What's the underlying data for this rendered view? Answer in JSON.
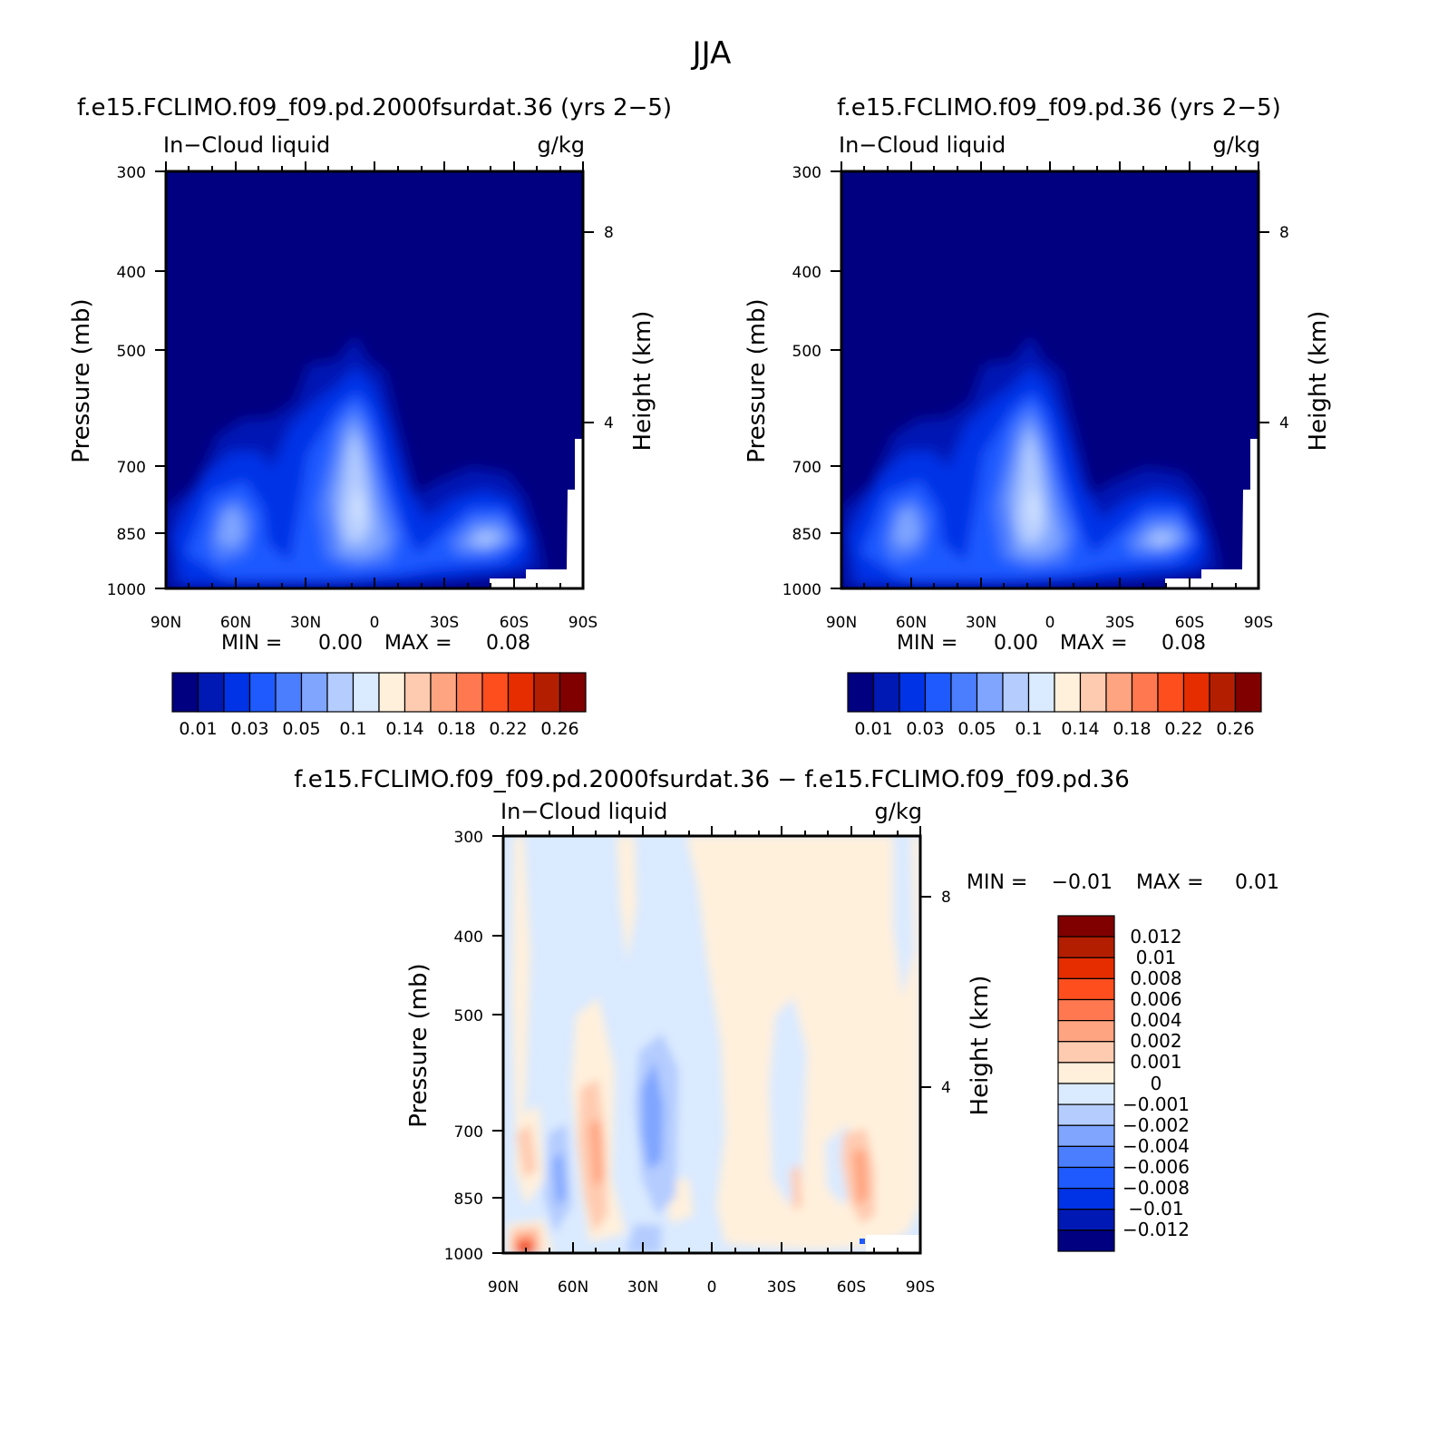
{
  "figure_title": "JJA",
  "colors": {
    "abs_scale": [
      "#000080",
      "#0019b4",
      "#0032e6",
      "#1e5aff",
      "#4b7dff",
      "#7fa5ff",
      "#b4ccff",
      "#daeaff",
      "#fff0dc",
      "#ffcbb0",
      "#ffa480",
      "#ff7850",
      "#ff4e1e",
      "#e62d00",
      "#b41e00",
      "#800000"
    ],
    "diff_scale": [
      "#000080",
      "#0019b4",
      "#0032e6",
      "#1e5aff",
      "#4b7dff",
      "#7fa5ff",
      "#b4ccff",
      "#daeaff",
      "#fff0dc",
      "#ffcbb0",
      "#ffa480",
      "#ff7850",
      "#ff4e1e",
      "#e62d00",
      "#b41e00",
      "#800000"
    ]
  },
  "panels": [
    {
      "title": "f.e15.FCLIMO.f09_f09.pd.2000fsurdat.36 (yrs 2-5)",
      "left_label": "In-Cloud liquid",
      "right_label": "g/kg",
      "minmax": {
        "min_label": "MIN =",
        "min": "0.00",
        "max_label": "MAX =",
        "max": "0.08"
      },
      "colorbar": {
        "labels": [
          "0.01",
          "0.03",
          "0.05",
          "0.1",
          "0.14",
          "0.18",
          "0.22",
          "0.26"
        ]
      }
    },
    {
      "title": "f.e15.FCLIMO.f09_f09.pd.36 (yrs 2-5)",
      "left_label": "In-Cloud liquid",
      "right_label": "g/kg",
      "minmax": {
        "min_label": "MIN =",
        "min": "0.00",
        "max_label": "MAX =",
        "max": "0.08"
      },
      "colorbar": {
        "labels": [
          "0.01",
          "0.03",
          "0.05",
          "0.1",
          "0.14",
          "0.18",
          "0.22",
          "0.26"
        ]
      }
    },
    {
      "title": "f.e15.FCLIMO.f09_f09.pd.2000fsurdat.36 - f.e15.FCLIMO.f09_f09.pd.36",
      "left_label": "In-Cloud liquid",
      "right_label": "g/kg",
      "minmax": {
        "min_label": "MIN =",
        "min": "-0.01",
        "max_label": "MAX =",
        "max": "0.01"
      },
      "colorbar": {
        "labels": [
          "0.012",
          "0.01",
          "0.008",
          "0.006",
          "0.004",
          "0.002",
          "0.001",
          "0",
          "-0.001",
          "-0.002",
          "-0.004",
          "-0.006",
          "-0.008",
          "-0.01",
          "-0.012"
        ]
      }
    }
  ],
  "chart_data": [
    {
      "type": "heatmap",
      "title": "f.e15.FCLIMO.f09_f09.pd.2000fsurdat.36 (yrs 2-5)",
      "xlabel": "",
      "ylabel": "Pressure (mb)",
      "y2label": "Height (km)",
      "x_ticks": [
        "90N",
        "60N",
        "30N",
        "0",
        "30S",
        "60S",
        "90S"
      ],
      "y_ticks": [
        300,
        400,
        500,
        700,
        850,
        1000
      ],
      "y_log_scale": true,
      "ylim": [
        1000,
        300
      ],
      "y2_ticks": [
        4,
        8
      ],
      "field": "In-Cloud liquid (g/kg)",
      "min": 0.0,
      "max": 0.08,
      "contour_levels": [
        0.005,
        0.01,
        0.02,
        0.03,
        0.04,
        0.05,
        0.06,
        0.08,
        0.1,
        0.12,
        0.14,
        0.16,
        0.18,
        0.2,
        0.22,
        0.24,
        0.26
      ],
      "structure": "low-level cloud below ~500 mb peaking (~0.06-0.08 g/kg) near 10-15N around 750 mb, secondary maxima near 80N-60N and 50S at 850 mb; near zero above 500 mb"
    },
    {
      "type": "heatmap",
      "title": "f.e15.FCLIMO.f09_f09.pd.36 (yrs 2-5)",
      "xlabel": "",
      "ylabel": "Pressure (mb)",
      "y2label": "Height (km)",
      "x_ticks": [
        "90N",
        "60N",
        "30N",
        "0",
        "30S",
        "60S",
        "90S"
      ],
      "y_ticks": [
        300,
        400,
        500,
        700,
        850,
        1000
      ],
      "y_log_scale": true,
      "ylim": [
        1000,
        300
      ],
      "y2_ticks": [
        4,
        8
      ],
      "field": "In-Cloud liquid (g/kg)",
      "min": 0.0,
      "max": 0.08,
      "contour_levels": [
        0.005,
        0.01,
        0.02,
        0.03,
        0.04,
        0.05,
        0.06,
        0.08,
        0.1,
        0.12,
        0.14,
        0.16,
        0.18,
        0.2,
        0.22,
        0.24,
        0.26
      ],
      "structure": "nearly identical to the first panel"
    },
    {
      "type": "heatmap",
      "title": "f.e15.FCLIMO.f09_f09.pd.2000fsurdat.36 - f.e15.FCLIMO.f09_f09.pd.36",
      "xlabel": "",
      "ylabel": "Pressure (mb)",
      "y2label": "Height (km)",
      "x_ticks": [
        "90N",
        "60N",
        "30N",
        "0",
        "30S",
        "60S",
        "90S"
      ],
      "y_ticks": [
        300,
        400,
        500,
        700,
        850,
        1000
      ],
      "y_log_scale": true,
      "ylim": [
        1000,
        300
      ],
      "y2_ticks": [
        4,
        8
      ],
      "field": "In-Cloud liquid difference (g/kg)",
      "min": -0.01,
      "max": 0.01,
      "contour_levels": [
        -0.012,
        -0.01,
        -0.008,
        -0.006,
        -0.004,
        -0.002,
        -0.001,
        0,
        0.001,
        0.002,
        0.004,
        0.006,
        0.008,
        0.01,
        0.012
      ],
      "structure": "mostly within +/-0.001; positive maximum near 80N at 1000 mb, small positive streaks near 45N and 60S at 700-850 mb, negative band near 25N"
    }
  ]
}
